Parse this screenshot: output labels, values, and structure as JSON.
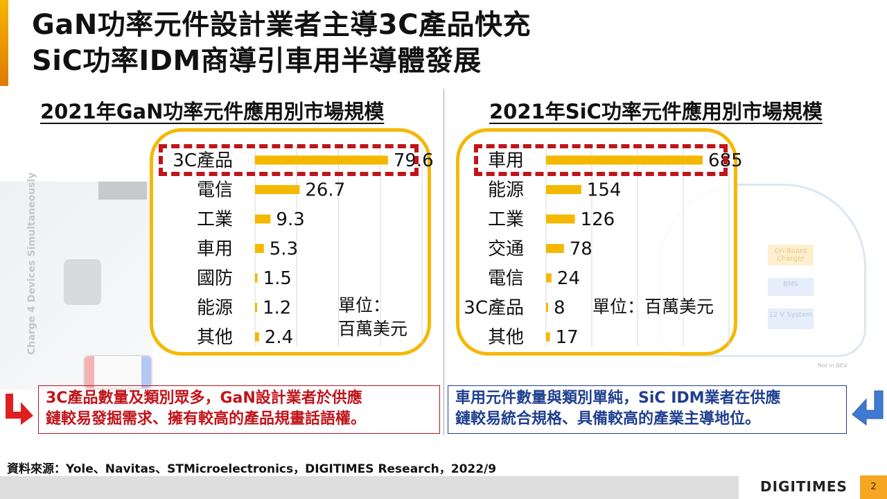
{
  "slide": {
    "title_line1": "GaN功率元件設計業者主導3C產品快充",
    "title_line2": "SiC功率IDM商導引車用半導體發展",
    "left_subtitle": "2021年GaN功率元件應用別市場規模",
    "right_subtitle": "2021年SiC功率元件應用別市場規模",
    "left_unit_line1": "單位：",
    "left_unit_line2": "百萬美元",
    "right_unit": "單位：百萬美元",
    "left_note_line1": "3C產品數量及類別眾多，GaN設計業者於供應",
    "left_note_line2": "鏈較易發掘需求、擁有較高的產品規畫話語權。",
    "right_note_line1": "車用元件數量與類別單純，SiC IDM業者在供應",
    "right_note_line2": "鏈較易統合規格、具備較高的產業主導地位。",
    "source": "資料來源：Yole、Navitas、STMicroelectronics，DIGITIMES Research，2022/9",
    "brand": "DIGITIMES",
    "page_number": "2",
    "bg_left_text": "Charge 4 Devices Simultaneously",
    "bg_right_box1": "On-Board Charger",
    "bg_right_box2": "BMS",
    "bg_right_box3": "12 V System",
    "bg_right_note": "Not in BEV"
  },
  "colors": {
    "bar": "#f5b800",
    "accent": "#f5a000",
    "highlight_red": "#c0141b",
    "note_blue": "#1f3f8f"
  },
  "chart_data": [
    {
      "type": "bar",
      "orientation": "horizontal",
      "categories": [
        "3C產品",
        "電信",
        "工業",
        "車用",
        "國防",
        "能源",
        "其他"
      ],
      "values": [
        79.6,
        26.7,
        9.3,
        5.3,
        1.5,
        1.2,
        2.4
      ],
      "value_labels": [
        "79.6",
        "26.7",
        "9.3",
        "5.3",
        "1.5",
        "1.2",
        "2.4"
      ],
      "title": "2021年GaN功率元件應用別市場規模",
      "unit": "單位：百萬美元",
      "xlim": [
        0,
        100
      ],
      "grid": true,
      "highlighted_category": "3C產品"
    },
    {
      "type": "bar",
      "orientation": "horizontal",
      "categories": [
        "車用",
        "能源",
        "工業",
        "交通",
        "電信",
        "3C產品",
        "其他"
      ],
      "values": [
        685,
        154,
        126,
        78,
        24,
        8,
        17
      ],
      "value_labels": [
        "685",
        "154",
        "126",
        "78",
        "24",
        "8",
        "17"
      ],
      "title": "2021年SiC功率元件應用別市場規模",
      "unit": "單位：百萬美元",
      "xlim": [
        0,
        800
      ],
      "grid": true,
      "highlighted_category": "車用"
    }
  ]
}
